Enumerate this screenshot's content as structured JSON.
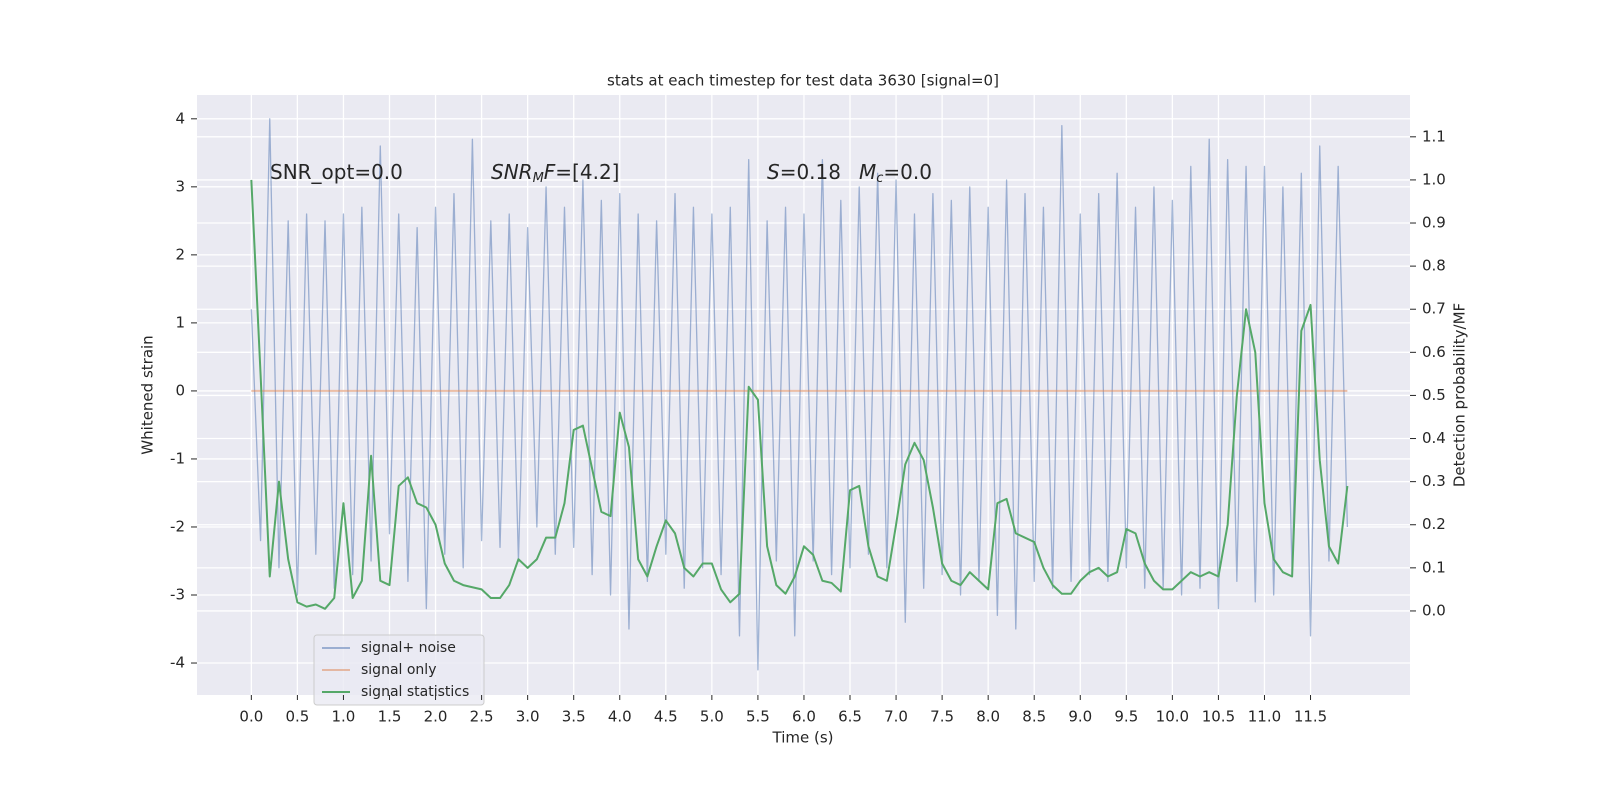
{
  "chart_data": {
    "type": "line",
    "title": "stats at each timestep for test data 3630 [signal=0]",
    "xlabel": "Time (s)",
    "ylabel": "Whitened strain",
    "y2label": "Detection probability/MF",
    "xlim": [
      -0.59,
      12.58
    ],
    "ylim": [
      -4.47,
      4.35
    ],
    "y2lim": [
      -0.195,
      1.197
    ],
    "xticks": [
      {
        "value": 0,
        "label": "0.0"
      },
      0.5,
      {
        "value": 1,
        "label": "1.0"
      },
      1.5,
      {
        "value": 2,
        "label": "2.0"
      },
      2.5,
      {
        "value": 3,
        "label": "3.0"
      },
      3.5,
      {
        "value": 4,
        "label": "4.0"
      },
      4.5,
      {
        "value": 5,
        "label": "5.0"
      },
      5.5,
      {
        "value": 6,
        "label": "6.0"
      },
      6.5,
      {
        "value": 7,
        "label": "7.0"
      },
      7.5,
      {
        "value": 8,
        "label": "8.0"
      },
      8.5,
      {
        "value": 9,
        "label": "9.0"
      },
      9.5,
      {
        "value": 10,
        "label": "10.0"
      },
      10.5,
      {
        "value": 11,
        "label": "11.0"
      },
      11.5
    ],
    "yticks": [
      -4,
      -3,
      -2,
      -1,
      0,
      1,
      2,
      3,
      4
    ],
    "y2ticks": [
      {
        "value": 0,
        "label": "0.0"
      },
      0.1,
      0.2,
      0.3,
      0.4,
      0.5,
      0.6,
      0.7,
      0.8,
      0.9,
      {
        "value": 1,
        "label": "1.0"
      },
      1.1
    ],
    "grid": true,
    "legend": "lower left",
    "annotations": [
      [
        {
          "text": "SNR_opt=0.0"
        }
      ],
      [
        {
          "text": "SNR",
          "italic": true
        },
        {
          "text": "M",
          "italic": true,
          "sub": true
        },
        {
          "text": "F",
          "italic": true
        },
        {
          "text": "=[4.2]"
        }
      ],
      [
        {
          "text": "S",
          "italic": true
        },
        {
          "text": "=0.18"
        },
        {
          "text": "M",
          "italic": true
        },
        {
          "text": "c",
          "italic": true,
          "sub": true
        },
        {
          "text": "=0.0"
        }
      ]
    ],
    "x": [
      0,
      0.1,
      0.2,
      0.3,
      0.4,
      0.5,
      0.6,
      0.7,
      0.8,
      0.9,
      1,
      1.1,
      1.2,
      1.3,
      1.4,
      1.5,
      1.6,
      1.7,
      1.8,
      1.9,
      2,
      2.1,
      2.2,
      2.3,
      2.4,
      2.5,
      2.6,
      2.7,
      2.8,
      2.9,
      3,
      3.1,
      3.2,
      3.3,
      3.4,
      3.5,
      3.6,
      3.7,
      3.8,
      3.9,
      4,
      4.1,
      4.2,
      4.3,
      4.4,
      4.5,
      4.6,
      4.7,
      4.8,
      4.9,
      5,
      5.1,
      5.2,
      5.3,
      5.4,
      5.5,
      5.6,
      5.7,
      5.8,
      5.9,
      6,
      6.1,
      6.2,
      6.3,
      6.4,
      6.5,
      6.6,
      6.7,
      6.8,
      6.9,
      7,
      7.1,
      7.2,
      7.3,
      7.4,
      7.5,
      7.6,
      7.7,
      7.8,
      7.9,
      8,
      8.1,
      8.2,
      8.3,
      8.4,
      8.5,
      8.6,
      8.7,
      8.8,
      8.9,
      9,
      9.1,
      9.2,
      9.3,
      9.4,
      9.5,
      9.6,
      9.7,
      9.8,
      9.9,
      10,
      10.1,
      10.2,
      10.3,
      10.4,
      10.5,
      10.6,
      10.7,
      10.8,
      10.9,
      11,
      11.1,
      11.2,
      11.3,
      11.4,
      11.5,
      11.6,
      11.7,
      11.8,
      11.9
    ],
    "series": [
      {
        "name": "signal+ noise",
        "color": "#4c72b0",
        "values": [
          1.2,
          -2.2,
          4.0,
          -2.6,
          2.5,
          -3.0,
          2.6,
          -2.4,
          2.5,
          -2.9,
          2.6,
          -2.7,
          2.7,
          -2.5,
          3.6,
          -2.1,
          2.6,
          -2.8,
          2.4,
          -3.2,
          2.7,
          -2.4,
          2.9,
          -2.6,
          3.7,
          -2.2,
          2.5,
          -2.3,
          2.6,
          -2.5,
          2.4,
          -2.0,
          3.0,
          -2.4,
          2.7,
          -2.3,
          3.1,
          -2.7,
          2.8,
          -3.0,
          2.9,
          -3.5,
          2.6,
          -2.8,
          2.5,
          -2.4,
          2.9,
          -2.9,
          2.7,
          -2.6,
          2.6,
          -2.7,
          2.7,
          -3.6,
          3.4,
          -4.1,
          2.5,
          -2.5,
          2.7,
          -3.6,
          2.6,
          -2.5,
          3.4,
          -2.7,
          2.8,
          -2.6,
          3.0,
          -2.4,
          3.2,
          -2.6,
          3.1,
          -3.4,
          2.6,
          -2.9,
          2.9,
          -2.7,
          2.8,
          -3.0,
          3.0,
          -2.8,
          2.7,
          -3.3,
          3.1,
          -3.5,
          2.9,
          -2.8,
          2.7,
          -2.9,
          3.9,
          -2.8,
          2.6,
          -2.7,
          2.9,
          -2.8,
          3.2,
          -2.6,
          2.7,
          -2.9,
          3.0,
          -2.9,
          2.8,
          -3.0,
          3.3,
          -2.9,
          3.7,
          -3.2,
          3.4,
          -2.8,
          3.3,
          -3.1,
          3.3,
          -3.0,
          3.0,
          -2.7,
          3.2,
          -3.6,
          3.6,
          -2.5,
          3.3,
          -2.0
        ]
      },
      {
        "name": "signal only",
        "color": "#dd8452",
        "x": [
          0,
          11.9
        ],
        "values": [
          0,
          0
        ]
      },
      {
        "name": "signal statistics",
        "color": "#55a868",
        "axis": "y2",
        "values": [
          1.0,
          0.55,
          0.08,
          0.3,
          0.12,
          0.02,
          0.01,
          0.015,
          0.005,
          0.03,
          0.25,
          0.03,
          0.07,
          0.36,
          0.07,
          0.06,
          0.29,
          0.31,
          0.25,
          0.24,
          0.2,
          0.11,
          0.07,
          0.06,
          0.055,
          0.05,
          0.03,
          0.03,
          0.06,
          0.12,
          0.1,
          0.12,
          0.17,
          0.17,
          0.25,
          0.42,
          0.43,
          0.33,
          0.23,
          0.22,
          0.46,
          0.38,
          0.12,
          0.08,
          0.15,
          0.21,
          0.18,
          0.1,
          0.08,
          0.11,
          0.11,
          0.05,
          0.02,
          0.04,
          0.52,
          0.49,
          0.15,
          0.06,
          0.04,
          0.08,
          0.15,
          0.13,
          0.07,
          0.065,
          0.045,
          0.28,
          0.29,
          0.15,
          0.08,
          0.07,
          0.2,
          0.34,
          0.39,
          0.35,
          0.24,
          0.11,
          0.07,
          0.06,
          0.09,
          0.07,
          0.05,
          0.25,
          0.26,
          0.18,
          0.17,
          0.16,
          0.1,
          0.06,
          0.04,
          0.04,
          0.07,
          0.09,
          0.1,
          0.08,
          0.09,
          0.19,
          0.18,
          0.11,
          0.07,
          0.05,
          0.05,
          0.07,
          0.09,
          0.08,
          0.09,
          0.08,
          0.2,
          0.5,
          0.7,
          0.6,
          0.25,
          0.12,
          0.09,
          0.08,
          0.65,
          0.71,
          0.35,
          0.15,
          0.11,
          0.29
        ]
      }
    ]
  }
}
